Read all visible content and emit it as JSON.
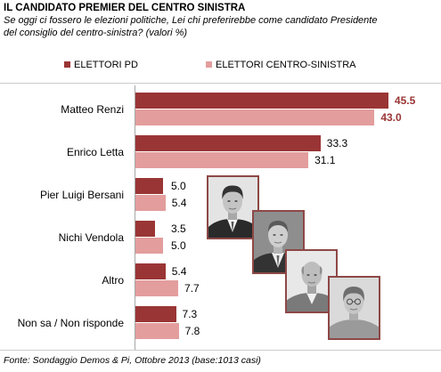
{
  "chart_data": {
    "type": "bar",
    "orientation": "horizontal",
    "title": "IL CANDIDATO PREMIER DEL CENTRO SINISTRA",
    "subtitle": [
      "Se oggi ci fossero le elezioni politiche, Lei chi preferirebbe come candidato Presidente",
      "del consiglio del centro-sinistra? (valori %)"
    ],
    "categories": [
      "Matteo Renzi",
      "Enrico Letta",
      "Pier Luigi Bersani",
      "Nichi Vendola",
      "Altro",
      "Non sa / Non risponde"
    ],
    "series": [
      {
        "name": "ELETTORI PD",
        "color": "#9a3535",
        "values": [
          45.5,
          33.3,
          5.0,
          3.5,
          5.4,
          7.3
        ]
      },
      {
        "name": "ELETTORI CENTRO-SINISTRA",
        "color": "#e39d9d",
        "values": [
          43.0,
          31.1,
          5.4,
          5.0,
          7.7,
          7.8
        ]
      }
    ],
    "xlim": [
      0,
      50
    ],
    "grid": false,
    "legend": "top",
    "value_label_emphasis": [
      true,
      false,
      false,
      false,
      false,
      false
    ],
    "emphasis_label_color": "#9a3535",
    "source": "Fonte: Sondaggio Demos & Pi, Ottobre 2013 (base:1013 casi)"
  }
}
